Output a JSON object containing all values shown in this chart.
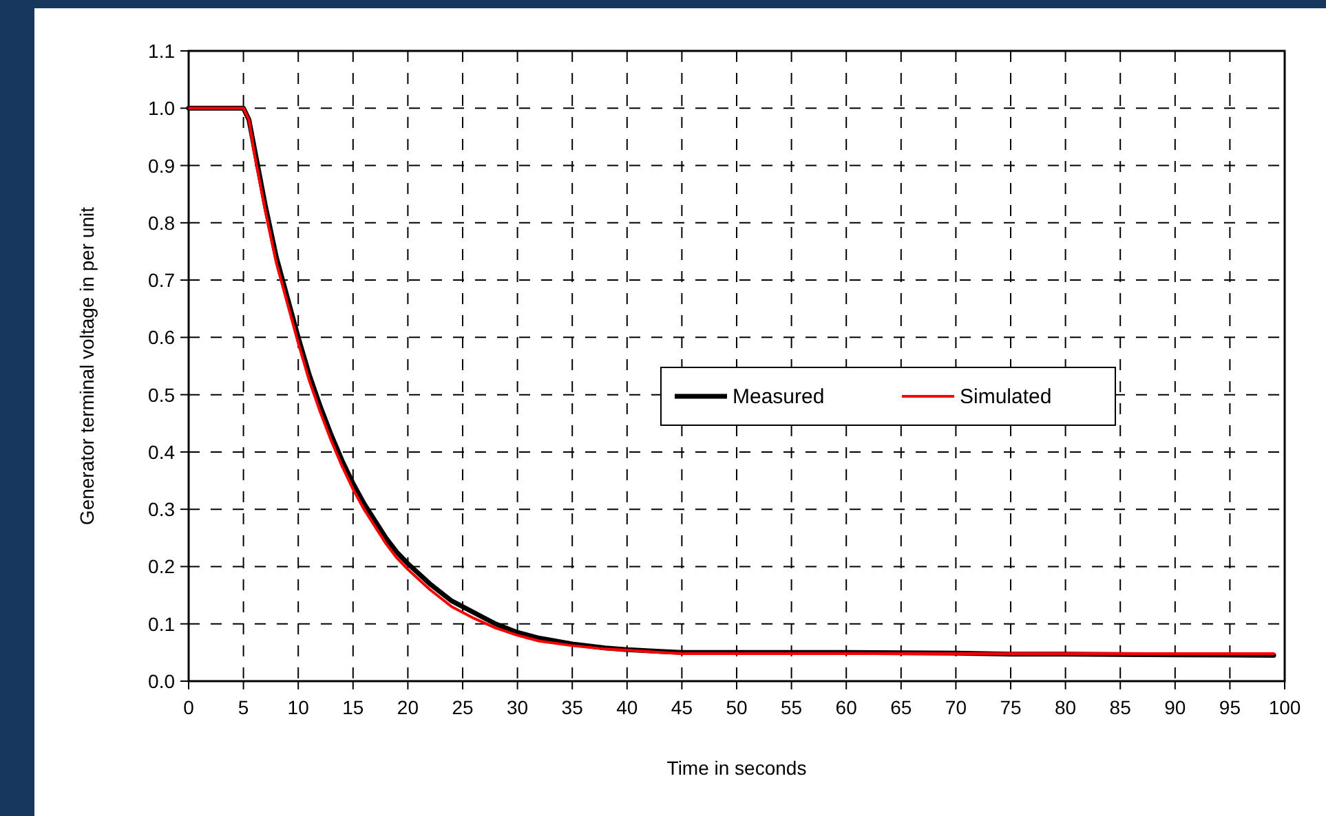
{
  "chart_data": {
    "type": "line",
    "xlabel": "Time in seconds",
    "ylabel": "Generator terminal voltage in per unit",
    "x": [
      0,
      5,
      5.5,
      6,
      7,
      8,
      9,
      10,
      11,
      12,
      13,
      14,
      15,
      16,
      17,
      18,
      19,
      20,
      22,
      24,
      26,
      28,
      30,
      32,
      35,
      38,
      40,
      43,
      45,
      50,
      60,
      70,
      75,
      80,
      90,
      99
    ],
    "series": [
      {
        "name": "Measured",
        "color": "#000000",
        "values": [
          1.0,
          1.0,
          0.98,
          0.93,
          0.83,
          0.74,
          0.67,
          0.6,
          0.535,
          0.48,
          0.43,
          0.385,
          0.345,
          0.31,
          0.28,
          0.25,
          0.225,
          0.205,
          0.17,
          0.14,
          0.12,
          0.1,
          0.085,
          0.075,
          0.065,
          0.058,
          0.055,
          0.052,
          0.05,
          0.05,
          0.05,
          0.049,
          0.047,
          0.047,
          0.046,
          0.045
        ]
      },
      {
        "name": "Simulated",
        "color": "#ff0000",
        "values": [
          1.0,
          1.0,
          0.98,
          0.92,
          0.82,
          0.73,
          0.66,
          0.59,
          0.525,
          0.47,
          0.42,
          0.375,
          0.335,
          0.3,
          0.27,
          0.24,
          0.215,
          0.195,
          0.16,
          0.13,
          0.11,
          0.093,
          0.08,
          0.07,
          0.062,
          0.056,
          0.054,
          0.05,
          0.048,
          0.048,
          0.048,
          0.048,
          0.048,
          0.048,
          0.048,
          0.048
        ]
      }
    ],
    "xlim": [
      0,
      100
    ],
    "xticks": [
      0,
      5,
      10,
      15,
      20,
      25,
      30,
      35,
      40,
      45,
      50,
      55,
      60,
      65,
      70,
      75,
      80,
      85,
      90,
      95,
      100
    ],
    "ylim": [
      0,
      1.1
    ],
    "yticks": [
      {
        "value": 0,
        "label": "0.0"
      },
      0.1,
      0.2,
      0.3,
      0.4,
      0.5,
      0.6,
      0.7,
      0.8,
      0.9,
      {
        "value": 1,
        "label": "1.0"
      },
      1.1
    ],
    "grid": true,
    "legend": "right",
    "line_style": "solid",
    "marker": "none"
  }
}
